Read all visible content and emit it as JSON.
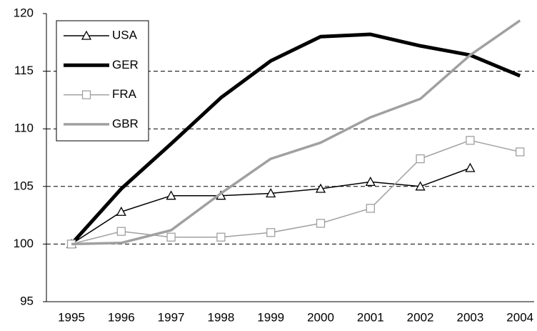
{
  "chart_data": {
    "type": "line",
    "categories": [
      "1995",
      "1996",
      "1997",
      "1998",
      "1999",
      "2000",
      "2001",
      "2002",
      "2003",
      "2004"
    ],
    "series": [
      {
        "name": "USA",
        "color": "#000000",
        "marker": "triangle",
        "values": [
          100,
          102.8,
          104.2,
          104.2,
          104.4,
          104.8,
          105.4,
          105.0,
          106.6,
          null
        ]
      },
      {
        "name": "GER",
        "color": "#000000",
        "marker": null,
        "values": [
          100,
          104.8,
          108.7,
          112.7,
          115.9,
          118.0,
          118.2,
          117.2,
          116.4,
          114.6
        ]
      },
      {
        "name": "FRA",
        "color": "#a0a0a0",
        "marker": "square",
        "values": [
          100,
          101.1,
          100.6,
          100.6,
          101.0,
          101.8,
          103.1,
          107.4,
          109.0,
          108.0
        ]
      },
      {
        "name": "GBR",
        "color": "#a0a0a0",
        "marker": null,
        "values": [
          100,
          100.1,
          101.2,
          104.4,
          107.4,
          108.8,
          111.0,
          112.6,
          116.4,
          119.4
        ]
      }
    ],
    "ylim": [
      95,
      120
    ],
    "yticks": [
      95,
      100,
      105,
      110,
      115,
      120
    ],
    "grid": true,
    "legend": "top-left"
  }
}
